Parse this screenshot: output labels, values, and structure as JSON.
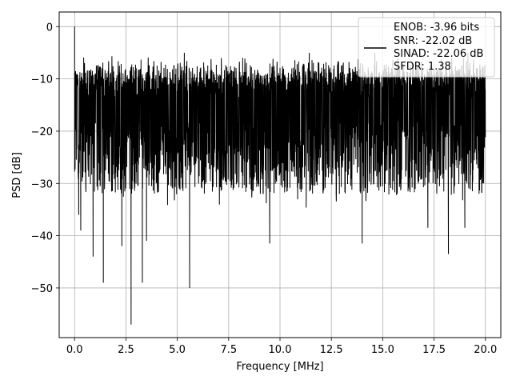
{
  "chart_data": {
    "type": "line",
    "title": "",
    "xlabel": "Frequency [MHz]",
    "ylabel": "PSD [dB]",
    "xlim": [
      -0.75,
      20.75
    ],
    "ylim": [
      -59.5,
      2.8
    ],
    "grid": true,
    "legend_position": "top-right",
    "x_ticks": [
      0.0,
      2.5,
      5.0,
      7.5,
      10.0,
      12.5,
      15.0,
      17.5,
      20.0
    ],
    "x_tick_labels": [
      "0.0",
      "2.5",
      "5.0",
      "7.5",
      "10.0",
      "12.5",
      "15.0",
      "17.5",
      "20.0"
    ],
    "y_ticks": [
      0,
      -10,
      -20,
      -30,
      -40,
      -50
    ],
    "y_tick_labels": [
      "0",
      "−10",
      "−20",
      "−30",
      "−40",
      "−50"
    ],
    "series": [
      {
        "name": "ENOB: -3.96 bits",
        "color": "#000000",
        "x_range": [
          0,
          20
        ],
        "approx_mean_db": -20,
        "envelope_top_db": -8,
        "noise_floor_db": -32,
        "highlights": [
          {
            "x": 0.0,
            "y": 0.0
          },
          {
            "x": 0.05,
            "y": -8.5
          },
          {
            "x": 0.2,
            "y": -36
          },
          {
            "x": 0.3,
            "y": -39
          },
          {
            "x": 0.9,
            "y": -44
          },
          {
            "x": 1.4,
            "y": -49
          },
          {
            "x": 2.3,
            "y": -42
          },
          {
            "x": 2.75,
            "y": -57
          },
          {
            "x": 3.3,
            "y": -49
          },
          {
            "x": 3.5,
            "y": -41
          },
          {
            "x": 5.6,
            "y": -50
          },
          {
            "x": 9.5,
            "y": -41.5
          },
          {
            "x": 14.0,
            "y": -41.5
          },
          {
            "x": 17.2,
            "y": -38.5
          },
          {
            "x": 18.2,
            "y": -43.5
          },
          {
            "x": 19.0,
            "y": -38.5
          }
        ]
      }
    ],
    "legend_lines": [
      "ENOB: -3.96 bits",
      "SNR: -22.02 dB",
      "SINAD: -22.06 dB",
      "SFDR: 1.38"
    ]
  }
}
